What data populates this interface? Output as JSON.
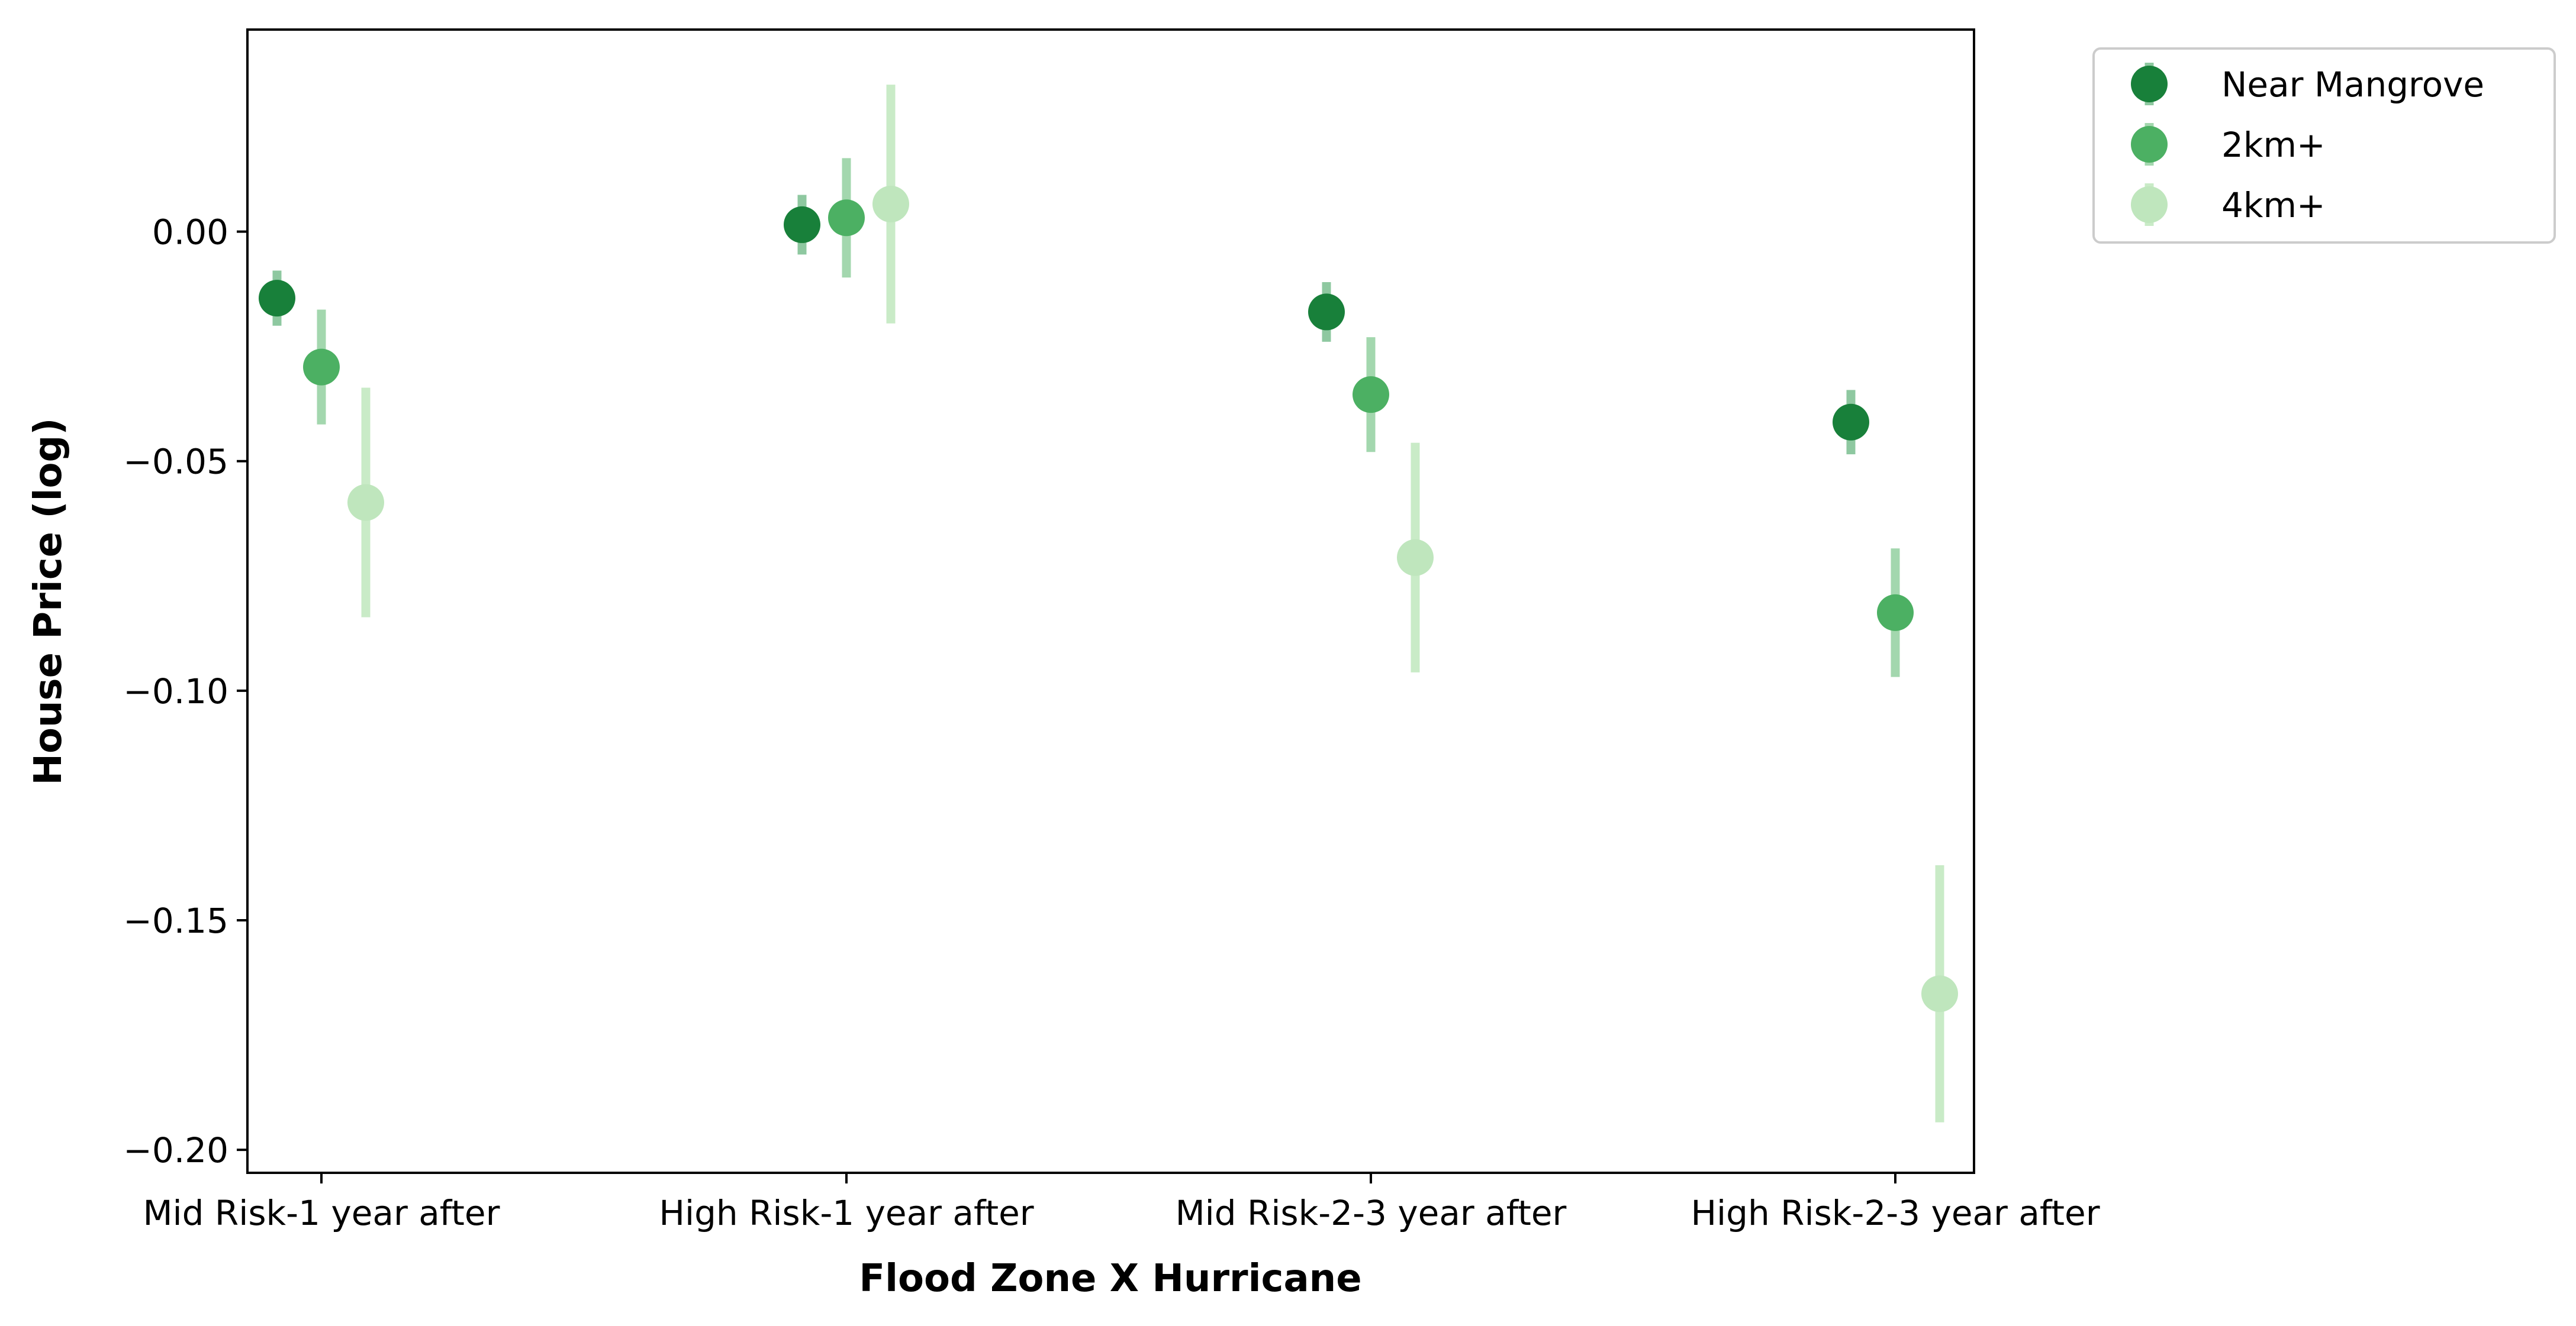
{
  "chart_data": {
    "type": "scatter",
    "subtype": "point-with-error-bars",
    "xlabel": "Flood Zone X Hurricane",
    "ylabel": "House Price (log)",
    "categories": [
      "Mid Risk-1 year after",
      "High Risk-1 year after",
      "Mid Risk-2-3 year after",
      "High Risk-2-3 year after"
    ],
    "ylim": [
      -0.205,
      0.044
    ],
    "yticks": [
      0.0,
      -0.05,
      -0.1,
      -0.15,
      -0.2
    ],
    "ytick_labels": [
      "0.00",
      "−0.05",
      "−0.10",
      "−0.15",
      "−0.20"
    ],
    "grid": false,
    "legend_position": "outside-top-right",
    "series": [
      {
        "name": "Near Mangrove",
        "color": "#18803a",
        "errcolor": "#8ec8a0",
        "values": [
          -0.0145,
          0.0015,
          -0.0175,
          -0.0415
        ],
        "err_low": [
          -0.0205,
          -0.005,
          -0.024,
          -0.0485
        ],
        "err_high": [
          -0.0085,
          0.008,
          -0.011,
          -0.0345
        ]
      },
      {
        "name": "2km+",
        "color": "#4cb063",
        "errcolor": "#a3d7ae",
        "values": [
          -0.0295,
          0.003,
          -0.0355,
          -0.083
        ],
        "err_low": [
          -0.042,
          -0.01,
          -0.048,
          -0.097
        ],
        "err_high": [
          -0.017,
          0.016,
          -0.023,
          -0.069
        ]
      },
      {
        "name": "4km+",
        "color": "#bfe6bd",
        "errcolor": "#c9ebc7",
        "values": [
          -0.059,
          0.006,
          -0.071,
          -0.166
        ],
        "err_low": [
          -0.084,
          -0.02,
          -0.096,
          -0.194
        ],
        "err_high": [
          -0.034,
          0.032,
          -0.046,
          -0.138
        ]
      }
    ]
  }
}
